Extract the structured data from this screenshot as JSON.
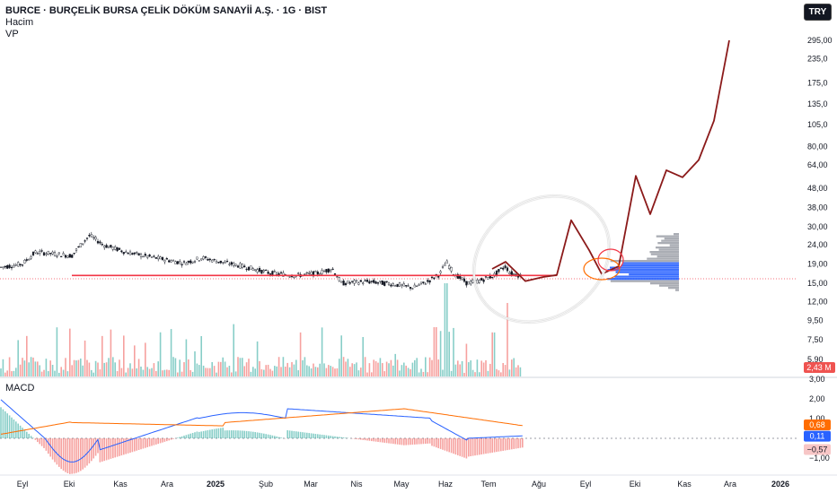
{
  "header": {
    "title": "BURCE · BURÇELİK BURSA ÇELİK DÖKÜM SANAYİİ A.Ş. · 1G · BIST",
    "volume_label": "Hacim",
    "vp_label": "VP",
    "currency": "TRY"
  },
  "macd_label": "MACD",
  "colors": {
    "price_line": "#f23645",
    "projection": "#8b1a1a",
    "up": "#26a69a",
    "down": "#ef5350",
    "macd": "#2962ff",
    "signal": "#ff6d00",
    "vp_up": "#2962ff",
    "vp_gray": "#787b86"
  },
  "chart_data": [
    {
      "type": "candlestick",
      "scale": "log",
      "price_axis_labels": [
        "295,00",
        "235,0",
        "175,0",
        "135,0",
        "105,0",
        "80,00",
        "64,00",
        "48,00",
        "38,00",
        "30,00",
        "24,00",
        "19,00",
        "15,00",
        "12,00",
        "9,50",
        "7,50",
        "5,90"
      ],
      "price_axis_values": [
        295,
        235,
        175,
        135,
        105,
        80,
        64,
        48,
        38,
        30,
        24,
        19,
        15,
        12,
        9.5,
        7.5,
        5.9
      ],
      "time_axis_labels": [
        "Eyl",
        "Eki",
        "Kas",
        "Ara",
        "2025",
        "Şub",
        "Mar",
        "Nis",
        "May",
        "Haz",
        "Tem",
        "Ağu",
        "Eyl",
        "Eki",
        "Kas",
        "Ara",
        "2026"
      ],
      "horizontal_level": 16.5,
      "volume_badge": "2,43 M",
      "projection_path_values": [
        19.5,
        15.4,
        16.2,
        16.6,
        32.5,
        22.5,
        16.8,
        18.5,
        56.0,
        35.0,
        60.0,
        55.0,
        68.0,
        110.0,
        295.0
      ]
    },
    {
      "type": "line",
      "name": "MACD",
      "axis_labels": [
        "3,00",
        "2,00",
        "1,00",
        "−1,00"
      ],
      "axis_values": [
        3,
        2,
        1,
        -1
      ],
      "badges": [
        {
          "text": "0,68",
          "value": 0.68,
          "color": "#ff6d00"
        },
        {
          "text": "0,11",
          "value": 0.11,
          "color": "#2962ff"
        },
        {
          "text": "−0,57",
          "value": -0.57,
          "color": "#f7c6c6"
        }
      ]
    }
  ]
}
